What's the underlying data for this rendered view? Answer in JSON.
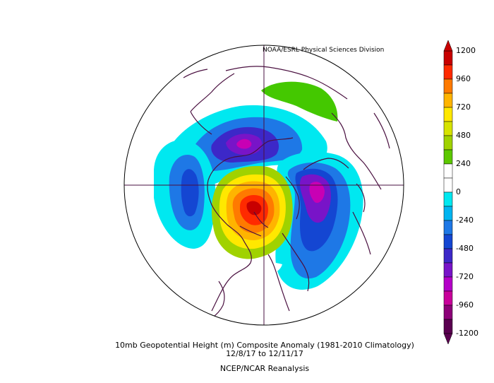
{
  "header": {
    "credit": "NOAA/ESRL Physical Sciences Division"
  },
  "footer": {
    "title": "10mb Geopotential Height (m) Composite Anomaly (1981-2010 Climatology)",
    "date_range": "12/8/17  to 12/11/17",
    "source": "NCEP/NCAR Reanalysis"
  },
  "colorbar": {
    "labels": [
      "1200",
      "960",
      "720",
      "480",
      "240",
      "0",
      "-240",
      "-480",
      "-720",
      "-960",
      "-1200"
    ],
    "colors": [
      "#c80000",
      "#ff2a00",
      "#ff7a00",
      "#ffb400",
      "#ffe800",
      "#d6e300",
      "#a0d200",
      "#5cc800",
      "#ffffff",
      "#ffffff",
      "#00e8f0",
      "#00b4f0",
      "#1e78e6",
      "#1446d2",
      "#3c28c8",
      "#7814c8",
      "#b400c8",
      "#c8009a",
      "#8c0078",
      "#5a0050"
    ]
  },
  "map": {
    "projection": "north-polar-stereographic",
    "features": [
      "positive-anomaly-canada-arctic",
      "negative-anomaly-siberia",
      "negative-anomaly-pacific",
      "negative-anomaly-europe",
      "positive-anomaly-russia-green"
    ]
  }
}
